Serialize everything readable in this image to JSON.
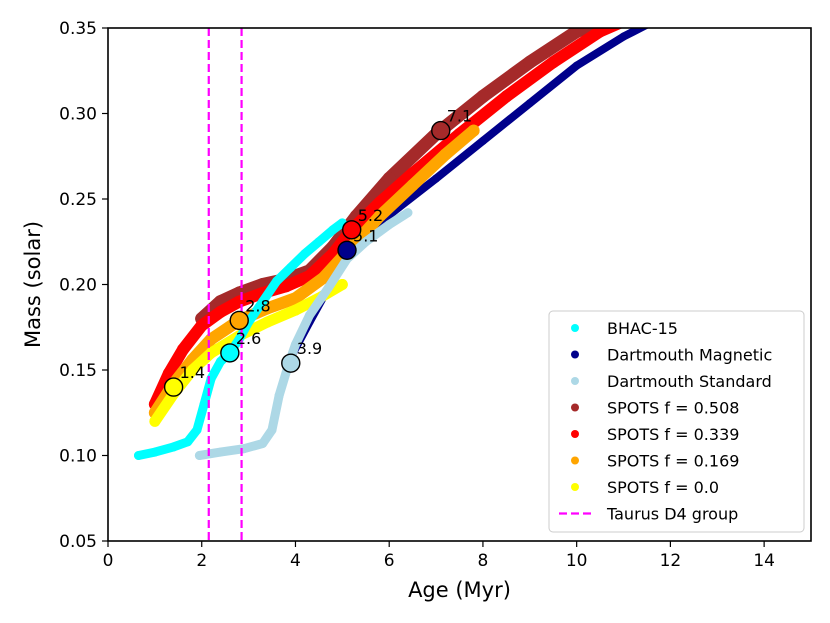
{
  "chart_data": {
    "type": "scatter",
    "xlabel": "Age (Myr)",
    "ylabel": "Mass (solar)",
    "xlim": [
      0,
      15
    ],
    "ylim": [
      0.05,
      0.35
    ],
    "xticks": [
      "0",
      "2",
      "4",
      "6",
      "8",
      "10",
      "12",
      "14"
    ],
    "yticks": [
      "0.05",
      "0.10",
      "0.15",
      "0.20",
      "0.25",
      "0.30",
      "0.35"
    ],
    "legend_position": "lower-right",
    "series": [
      {
        "name": "BHAC-15",
        "color": "#00ffff",
        "x": [
          0.65,
          1.0,
          1.4,
          1.7,
          1.9,
          2.05,
          2.2,
          2.4,
          2.6,
          2.8,
          3.0,
          3.3,
          3.6,
          3.9,
          4.2,
          4.5,
          4.8,
          5.0
        ],
        "y": [
          0.1,
          0.102,
          0.105,
          0.108,
          0.115,
          0.13,
          0.145,
          0.155,
          0.16,
          0.168,
          0.178,
          0.19,
          0.202,
          0.21,
          0.218,
          0.225,
          0.232,
          0.236
        ]
      },
      {
        "name": "Dartmouth Magnetic",
        "color": "#00008b",
        "x": [
          3.95,
          4.3,
          4.7,
          5.1,
          5.6,
          6.2,
          7.0,
          8.0,
          9.0,
          10.0,
          11.0,
          11.5
        ],
        "y": [
          0.16,
          0.178,
          0.198,
          0.22,
          0.232,
          0.245,
          0.262,
          0.284,
          0.306,
          0.328,
          0.345,
          0.352
        ]
      },
      {
        "name": "Dartmouth Standard",
        "color": "#add8e6",
        "x": [
          1.95,
          2.4,
          2.9,
          3.3,
          3.5,
          3.65,
          3.85,
          4.0,
          4.3,
          4.7,
          5.1,
          5.5,
          6.0,
          6.4
        ],
        "y": [
          0.1,
          0.102,
          0.104,
          0.107,
          0.115,
          0.135,
          0.153,
          0.165,
          0.182,
          0.198,
          0.215,
          0.225,
          0.235,
          0.242
        ]
      },
      {
        "name": "SPOTS f = 0.508",
        "color": "#a52a2a",
        "x": [
          2.0,
          2.4,
          2.8,
          3.3,
          3.8,
          4.3,
          4.8,
          5.3,
          6.0,
          7.0,
          8.0,
          9.0,
          10.0,
          10.8
        ],
        "y": [
          0.18,
          0.19,
          0.195,
          0.2,
          0.203,
          0.208,
          0.222,
          0.24,
          0.262,
          0.288,
          0.31,
          0.33,
          0.348,
          0.356
        ]
      },
      {
        "name": "SPOTS f = 0.339",
        "color": "#ff0000",
        "x": [
          1.0,
          1.3,
          1.6,
          2.0,
          2.4,
          2.8,
          3.3,
          3.8,
          4.3,
          4.8,
          5.2,
          5.8,
          6.5,
          7.5,
          8.5,
          9.5,
          10.5,
          11.0
        ],
        "y": [
          0.13,
          0.148,
          0.162,
          0.176,
          0.184,
          0.19,
          0.195,
          0.199,
          0.205,
          0.218,
          0.232,
          0.248,
          0.265,
          0.288,
          0.31,
          0.33,
          0.348,
          0.354
        ]
      },
      {
        "name": "SPOTS f = 0.169",
        "color": "#ffa500",
        "x": [
          1.0,
          1.4,
          1.8,
          2.2,
          2.8,
          3.4,
          4.0,
          4.6,
          5.2,
          5.8,
          6.5,
          7.2,
          7.8
        ],
        "y": [
          0.125,
          0.142,
          0.156,
          0.168,
          0.179,
          0.186,
          0.192,
          0.204,
          0.222,
          0.24,
          0.258,
          0.276,
          0.29
        ]
      },
      {
        "name": "SPOTS f = 0.0",
        "color": "#ffff00",
        "x": [
          1.0,
          1.4,
          1.8,
          2.2,
          2.8,
          3.4,
          4.0,
          4.5,
          5.0
        ],
        "y": [
          0.12,
          0.136,
          0.15,
          0.16,
          0.17,
          0.178,
          0.185,
          0.192,
          0.2
        ]
      }
    ],
    "vlines": [
      {
        "name": "Taurus D4 group",
        "color": "#ff00ff",
        "style": "dashed",
        "x": [
          2.15,
          2.85
        ]
      }
    ],
    "markers": [
      {
        "x": 1.4,
        "y": 0.14,
        "label": "1.4",
        "color": "#ffff00"
      },
      {
        "x": 2.6,
        "y": 0.16,
        "label": "2.6",
        "color": "#00ffff"
      },
      {
        "x": 2.8,
        "y": 0.179,
        "label": "2.8",
        "color": "#ffa500"
      },
      {
        "x": 3.9,
        "y": 0.154,
        "label": "3.9",
        "color": "#add8e6"
      },
      {
        "x": 5.1,
        "y": 0.22,
        "label": "5.1",
        "color": "#00008b"
      },
      {
        "x": 5.2,
        "y": 0.232,
        "label": "5.2",
        "color": "#ff0000"
      },
      {
        "x": 7.1,
        "y": 0.29,
        "label": "7.1",
        "color": "#a52a2a"
      }
    ],
    "legend": [
      {
        "label": "BHAC-15",
        "color": "#00ffff",
        "kind": "dot"
      },
      {
        "label": "Dartmouth Magnetic",
        "color": "#00008b",
        "kind": "dot"
      },
      {
        "label": "Dartmouth Standard",
        "color": "#add8e6",
        "kind": "dot"
      },
      {
        "label": "SPOTS f = 0.508",
        "color": "#a52a2a",
        "kind": "dot"
      },
      {
        "label": "SPOTS f = 0.339",
        "color": "#ff0000",
        "kind": "dot"
      },
      {
        "label": "SPOTS f = 0.169",
        "color": "#ffa500",
        "kind": "dot"
      },
      {
        "label": "SPOTS f = 0.0",
        "color": "#ffff00",
        "kind": "dot"
      },
      {
        "label": "Taurus D4 group",
        "color": "#ff00ff",
        "kind": "dash"
      }
    ]
  }
}
